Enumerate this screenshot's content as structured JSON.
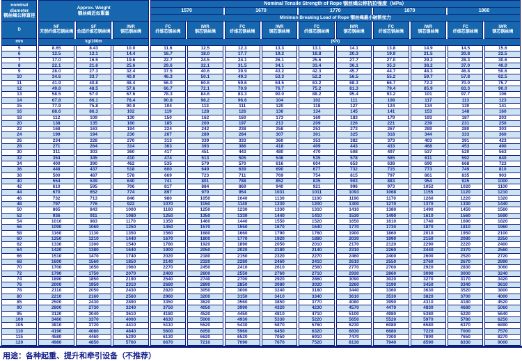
{
  "header": {
    "nominal_diameter_en": "nominal diameter",
    "nominal_diameter_zh": "钢丝绳公称直径",
    "d_label": "D",
    "mm_label": "mm",
    "approx_weight_en": "Approx. Weight",
    "approx_weight_zh": "钢丝绳近似重量",
    "kg_label": "kg/100m",
    "tensile_title": "Nominal Tensile Strength of Rope 钢丝绳公称抗拉强度（MPa）",
    "breaking_title": "Minimun Breaking Load of Rope 钢丝绳最小破断拉力",
    "kn_label": "(KN)",
    "strength_grades": [
      "1570",
      "1670",
      "1770",
      "1870",
      "1960"
    ],
    "weight_cols": [
      {
        "code": "NF",
        "zh": "天然纤维芯钢丝绳"
      },
      {
        "code": "SF",
        "zh": "合成纤维芯钢丝绳"
      },
      {
        "code": "IWR",
        "zh": "钢芯钢丝绳"
      }
    ],
    "fc_label": {
      "code": "FC",
      "zh": "纤维芯钢丝绳"
    },
    "iwr_label": {
      "code": "IWR",
      "zh": "钢芯钢丝绳"
    }
  },
  "footer": {
    "usage": "用途：各种起重、提升和牵引设备（不推荐）"
  },
  "colors": {
    "header_bg": "#1667ae",
    "border_navy": "#0b1c7c",
    "row_alt_bg": "#cde3f3",
    "text_navy": "#17278f"
  },
  "table": {
    "rows": [
      [
        "5",
        "8.65",
        "8.43",
        "10.0",
        "11.6",
        "12.5",
        "12.3",
        "13.3",
        "13.1",
        "14.1",
        "13.8",
        "14.9",
        "14.5",
        "15.6"
      ],
      [
        "6",
        "12.5",
        "12.1",
        "14.4",
        "16.7",
        "18.0",
        "17.7",
        "19.2",
        "18.8",
        "20.3",
        "19.9",
        "21.5",
        "20.8",
        "22.5"
      ],
      [
        "7",
        "17.0",
        "16.5",
        "19.6",
        "22.7",
        "24.5",
        "24.1",
        "26.1",
        "25.6",
        "27.7",
        "27.0",
        "29.2",
        "28.3",
        "30.6"
      ],
      [
        "8",
        "22.1",
        "21.6",
        "25.6",
        "29.6",
        "32.1",
        "31.5",
        "34.1",
        "33.4",
        "36.1",
        "35.3",
        "38.2",
        "37.0",
        "40.0"
      ],
      [
        "9",
        "28.0",
        "27.3",
        "32.4",
        "37.5",
        "40.6",
        "39.9",
        "43.2",
        "42.3",
        "45.7",
        "44.7",
        "48.3",
        "46.8",
        "50.6"
      ],
      [
        "10",
        "34.6",
        "33.7",
        "40.0",
        "46.3",
        "50.1",
        "49.3",
        "53.3",
        "52.2",
        "56.5",
        "55.2",
        "59.7",
        "57.8",
        "62.5"
      ],
      [
        "11",
        "41.9",
        "40.8",
        "48.4",
        "56.0",
        "60.6",
        "59.6",
        "64.5",
        "63.2",
        "68.3",
        "66.7",
        "72.2",
        "70.0",
        "75.7"
      ],
      [
        "12",
        "49.8",
        "48.5",
        "57.6",
        "66.7",
        "72.1",
        "70.9",
        "76.7",
        "75.2",
        "81.3",
        "79.4",
        "85.9",
        "83.3",
        "90.0"
      ],
      [
        "13",
        "58.5",
        "57.0",
        "67.6",
        "78.3",
        "84.6",
        "83.3",
        "90.0",
        "88.2",
        "95.4",
        "93.2",
        "101",
        "97.7",
        "106"
      ],
      [
        "14",
        "67.8",
        "66.1",
        "78.4",
        "90.8",
        "98.2",
        "96.6",
        "104",
        "102",
        "111",
        "108",
        "117",
        "113",
        "123"
      ],
      [
        "15",
        "77.9",
        "75.8",
        "90.0",
        "104",
        "113",
        "111",
        "120",
        "118",
        "127",
        "124",
        "134",
        "130",
        "141"
      ],
      [
        "16",
        "88.6",
        "86.3",
        "102",
        "119",
        "128",
        "126",
        "136",
        "134",
        "145",
        "141",
        "153",
        "148",
        "160"
      ],
      [
        "18",
        "112",
        "109",
        "130",
        "150",
        "162",
        "160",
        "173",
        "169",
        "183",
        "179",
        "193",
        "187",
        "203"
      ],
      [
        "20",
        "138",
        "135",
        "160",
        "185",
        "200",
        "197",
        "213",
        "209",
        "226",
        "221",
        "239",
        "231",
        "250"
      ],
      [
        "22",
        "168",
        "163",
        "194",
        "224",
        "242",
        "238",
        "258",
        "253",
        "273",
        "267",
        "289",
        "280",
        "303"
      ],
      [
        "24",
        "199",
        "194",
        "230",
        "267",
        "289",
        "284",
        "307",
        "301",
        "325",
        "318",
        "344",
        "333",
        "360"
      ],
      [
        "26",
        "234",
        "228",
        "270",
        "313",
        "339",
        "333",
        "360",
        "353",
        "382",
        "373",
        "403",
        "391",
        "423"
      ],
      [
        "28",
        "271",
        "264",
        "314",
        "363",
        "393",
        "386",
        "418",
        "409",
        "443",
        "433",
        "468",
        "453",
        "490"
      ],
      [
        "30",
        "311",
        "303",
        "360",
        "417",
        "451",
        "443",
        "480",
        "470",
        "508",
        "497",
        "537",
        "520",
        "563"
      ],
      [
        "32",
        "354",
        "345",
        "410",
        "474",
        "513",
        "505",
        "546",
        "535",
        "578",
        "565",
        "611",
        "592",
        "640"
      ],
      [
        "34",
        "400",
        "390",
        "462",
        "535",
        "579",
        "570",
        "616",
        "604",
        "653",
        "638",
        "690",
        "668",
        "723"
      ],
      [
        "36",
        "448",
        "437",
        "518",
        "600",
        "649",
        "639",
        "690",
        "677",
        "732",
        "715",
        "773",
        "749",
        "810"
      ],
      [
        "38",
        "500",
        "487",
        "578",
        "669",
        "723",
        "711",
        "769",
        "754",
        "815",
        "797",
        "861",
        "835",
        "903"
      ],
      [
        "40",
        "554",
        "539",
        "640",
        "741",
        "801",
        "788",
        "852",
        "835",
        "903",
        "883",
        "954",
        "925",
        "1000"
      ],
      [
        "42",
        "610",
        "595",
        "706",
        "817",
        "884",
        "869",
        "940",
        "921",
        "996",
        "973",
        "1052",
        "1020",
        "1100"
      ],
      [
        "44",
        "670",
        "652",
        "774",
        "897",
        "970",
        "954",
        "1031",
        "1011",
        "1093",
        "1068",
        "1155",
        "1120",
        "1210"
      ],
      [
        "46",
        "732",
        "713",
        "846",
        "980",
        "1050",
        "1040",
        "1130",
        "1100",
        "1190",
        "1170",
        "1260",
        "1220",
        "1320"
      ],
      [
        "48",
        "797",
        "776",
        "922",
        "1070",
        "1150",
        "1140",
        "1230",
        "1200",
        "1300",
        "1270",
        "1370",
        "1330",
        "1440"
      ],
      [
        "50",
        "865",
        "843",
        "1000",
        "1160",
        "1250",
        "1230",
        "1330",
        "1310",
        "1410",
        "1380",
        "1490",
        "1450",
        "1560"
      ],
      [
        "52",
        "936",
        "911",
        "1080",
        "1250",
        "1350",
        "1330",
        "1440",
        "1410",
        "1530",
        "1490",
        "1610",
        "1560",
        "1690"
      ],
      [
        "54",
        "1010",
        "983",
        "1170",
        "1350",
        "1460",
        "1440",
        "1550",
        "1520",
        "1650",
        "1610",
        "1740",
        "1690",
        "1820"
      ],
      [
        "56",
        "1090",
        "1060",
        "1250",
        "1450",
        "1570",
        "1550",
        "1670",
        "1640",
        "1770",
        "1730",
        "1870",
        "1810",
        "1960"
      ],
      [
        "58",
        "1160",
        "1130",
        "1350",
        "1560",
        "1680",
        "1660",
        "1790",
        "1760",
        "1900",
        "1860",
        "2010",
        "1950",
        "2100"
      ],
      [
        "60",
        "1250",
        "1210",
        "1440",
        "1670",
        "1800",
        "1770",
        "1920",
        "1880",
        "2030",
        "1990",
        "2150",
        "2080",
        "2250"
      ],
      [
        "62",
        "1330",
        "1300",
        "1540",
        "1780",
        "1920",
        "1890",
        "2050",
        "2010",
        "2170",
        "2120",
        "2290",
        "2220",
        "2400"
      ],
      [
        "64",
        "1420",
        "1380",
        "1640",
        "1900",
        "2050",
        "2020",
        "2180",
        "2140",
        "2310",
        "2260",
        "2440",
        "2370",
        "2560"
      ],
      [
        "66",
        "1510",
        "1470",
        "1740",
        "2020",
        "2180",
        "2150",
        "2320",
        "2270",
        "2460",
        "2400",
        "2600",
        "2520",
        "2720"
      ],
      [
        "68",
        "1600",
        "1560",
        "1850",
        "2140",
        "2320",
        "2280",
        "2460",
        "2410",
        "2610",
        "2550",
        "2760",
        "2670",
        "2890"
      ],
      [
        "70",
        "1700",
        "1650",
        "1960",
        "2270",
        "2450",
        "2410",
        "2610",
        "2560",
        "2770",
        "2700",
        "2920",
        "2830",
        "3060"
      ],
      [
        "72",
        "1790",
        "1750",
        "2070",
        "2400",
        "2600",
        "2550",
        "2760",
        "2710",
        "2930",
        "2860",
        "3090",
        "3000",
        "3240"
      ],
      [
        "74",
        "1890",
        "1850",
        "2190",
        "2540",
        "2740",
        "2700",
        "2920",
        "2860",
        "3090",
        "3020",
        "3270",
        "3170",
        "3420"
      ],
      [
        "76",
        "2000",
        "1950",
        "2310",
        "2680",
        "2890",
        "2850",
        "3080",
        "3020",
        "3260",
        "3190",
        "3450",
        "3340",
        "3610"
      ],
      [
        "78",
        "2110",
        "2050",
        "2430",
        "2820",
        "3050",
        "3000",
        "3240",
        "3180",
        "3440",
        "3360",
        "3630",
        "3520",
        "3800"
      ],
      [
        "80",
        "2210",
        "2160",
        "2560",
        "2960",
        "3200",
        "3150",
        "3410",
        "3340",
        "3610",
        "3530",
        "3820",
        "3700",
        "4000"
      ],
      [
        "85",
        "2500",
        "2430",
        "2890",
        "3350",
        "3620",
        "3560",
        "3850",
        "3770",
        "4080",
        "3990",
        "4310",
        "4180",
        "4520"
      ],
      [
        "90",
        "2800",
        "2730",
        "3240",
        "3750",
        "4050",
        "3990",
        "4320",
        "4230",
        "4570",
        "4470",
        "4830",
        "4680",
        "5060"
      ],
      [
        "95",
        "3120",
        "3040",
        "3610",
        "4180",
        "4520",
        "4450",
        "4810",
        "4710",
        "5100",
        "4980",
        "5380",
        "5220",
        "5640"
      ],
      [
        "100",
        "3460",
        "3370",
        "4000",
        "4630",
        "5000",
        "4930",
        "5330",
        "5220",
        "5650",
        "5520",
        "5970",
        "5780",
        "6250"
      ],
      [
        "105",
        "3810",
        "3720",
        "4410",
        "5110",
        "5520",
        "5430",
        "5870",
        "5760",
        "6230",
        "6080",
        "6580",
        "6370",
        "6890"
      ],
      [
        "110",
        "4190",
        "4080",
        "4840",
        "5600",
        "6050",
        "5960",
        "6450",
        "6320",
        "6830",
        "6680",
        "7220",
        "7000",
        "7570"
      ],
      [
        "115",
        "4580",
        "4460",
        "5290",
        "6130",
        "6620",
        "6520",
        "7050",
        "6910",
        "7470",
        "7300",
        "7890",
        "7650",
        "8270"
      ],
      [
        "120",
        "4980",
        "4850",
        "5760",
        "6670",
        "7210",
        "7090",
        "7670",
        "7520",
        "8130",
        "7940",
        "8590",
        "8330",
        "9000"
      ]
    ]
  }
}
